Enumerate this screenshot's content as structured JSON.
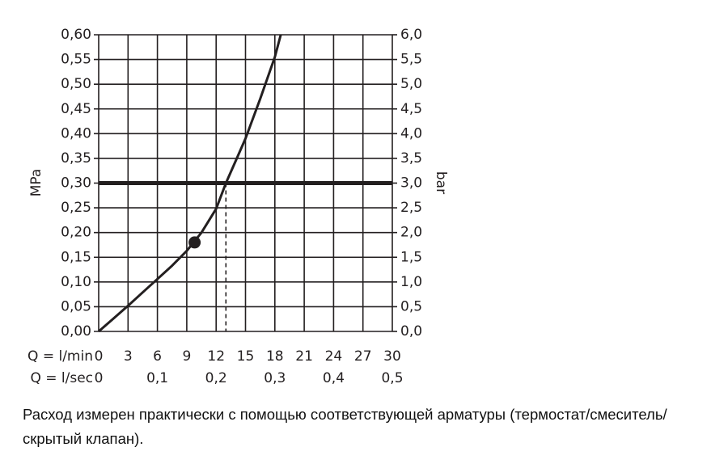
{
  "chart_data": {
    "type": "line",
    "xlabel": "Q = l/min",
    "x2label": "Q = l/sec",
    "ylabel": "MPa",
    "y2label": "bar",
    "xlim": [
      0,
      30
    ],
    "xticks": [
      0,
      3,
      6,
      9,
      12,
      15,
      18,
      21,
      24,
      27,
      30
    ],
    "x2lim": [
      0,
      0.5
    ],
    "x2ticks": [
      0,
      {
        "value": 0.1,
        "label": "0,1"
      },
      {
        "value": 0.2,
        "label": "0,2"
      },
      {
        "value": 0.3,
        "label": "0,3"
      },
      {
        "value": 0.4,
        "label": "0,4"
      },
      {
        "value": 0.5,
        "label": "0,5"
      }
    ],
    "ylim": [
      0,
      0.6
    ],
    "yticks": [
      {
        "value": 0,
        "label": "0,00"
      },
      {
        "value": 0.05,
        "label": "0,05"
      },
      {
        "value": 0.1,
        "label": "0,10"
      },
      {
        "value": 0.15,
        "label": "0,15"
      },
      {
        "value": 0.2,
        "label": "0,20"
      },
      {
        "value": 0.25,
        "label": "0,25"
      },
      {
        "value": 0.3,
        "label": "0,30"
      },
      {
        "value": 0.35,
        "label": "0,35"
      },
      {
        "value": 0.4,
        "label": "0,40"
      },
      {
        "value": 0.45,
        "label": "0,45"
      },
      {
        "value": 0.5,
        "label": "0,50"
      },
      {
        "value": 0.55,
        "label": "0,55"
      },
      {
        "value": 0.6,
        "label": "0,60"
      }
    ],
    "y2lim": [
      0,
      6
    ],
    "y2ticks": [
      {
        "value": 0,
        "label": "0,0"
      },
      {
        "value": 0.5,
        "label": "0,5"
      },
      {
        "value": 1,
        "label": "1,0"
      },
      {
        "value": 1.5,
        "label": "1,5"
      },
      {
        "value": 2,
        "label": "2,0"
      },
      {
        "value": 2.5,
        "label": "2,5"
      },
      {
        "value": 3,
        "label": "3,0"
      },
      {
        "value": 3.5,
        "label": "3,5"
      },
      {
        "value": 4,
        "label": "4,0"
      },
      {
        "value": 4.5,
        "label": "4,5"
      },
      {
        "value": 5,
        "label": "5,0"
      },
      {
        "value": 5.5,
        "label": "5,5"
      },
      {
        "value": 6,
        "label": "6,0"
      }
    ],
    "grid": true,
    "series": [
      {
        "color": "#231f20",
        "x": [
          0,
          1.5,
          3,
          4.5,
          6,
          7.5,
          9,
          10.5,
          12,
          13,
          14,
          15,
          16.5,
          18,
          18.6
        ],
        "values": [
          0,
          0.026,
          0.052,
          0.079,
          0.106,
          0.133,
          0.163,
          0.2,
          0.248,
          0.3,
          0.345,
          0.39,
          0.47,
          0.555,
          0.6
        ]
      }
    ],
    "hline": 0.3,
    "vline": 13,
    "point": {
      "x": 9.8,
      "y": 0.18
    },
    "caption": "Расход измерен практически с помощью соответствующей арматуры (термостат/смеситель/скрытый клапан)."
  }
}
